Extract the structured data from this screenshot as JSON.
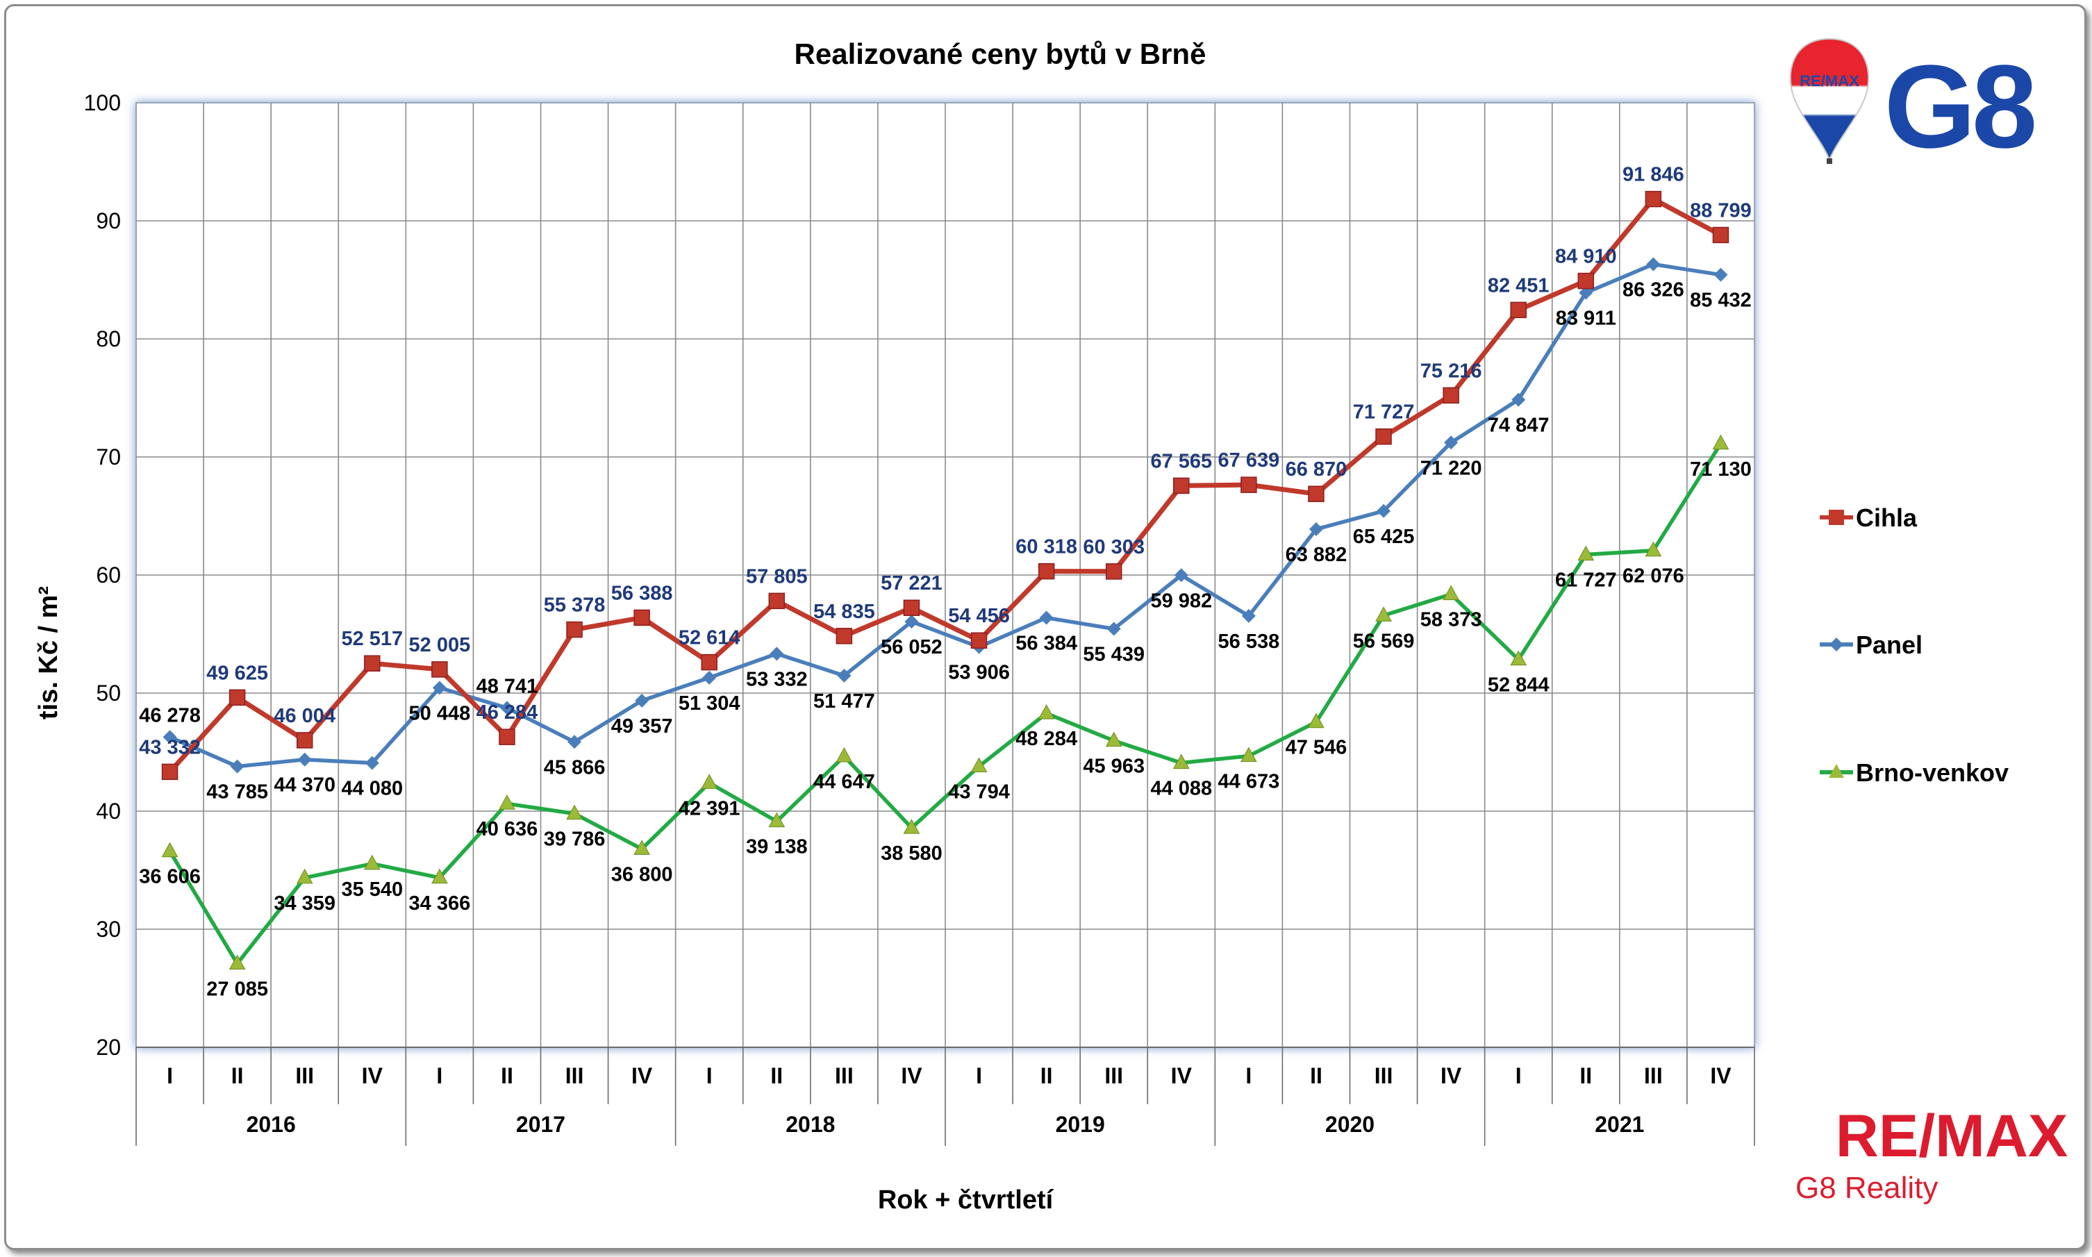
{
  "chart_data": {
    "type": "line",
    "title": "Realizované ceny bytů v Brně",
    "xlabel": "Rok + čtvrtletí",
    "ylabel": "tis. Kč / m²",
    "ylim": [
      20,
      100
    ],
    "yticks": [
      "20",
      "30",
      "40",
      "50",
      "60",
      "70",
      "80",
      "90",
      "100"
    ],
    "grid": true,
    "legend_position": "right",
    "quarters": [
      "I",
      "II",
      "III",
      "IV",
      "I",
      "II",
      "III",
      "IV",
      "I",
      "II",
      "III",
      "IV",
      "I",
      "II",
      "III",
      "IV",
      "I",
      "II",
      "III",
      "IV",
      "I",
      "II",
      "III",
      "IV"
    ],
    "years": [
      "2016",
      "2017",
      "2018",
      "2019",
      "2020",
      "2021"
    ],
    "series": [
      {
        "name": "Cihla",
        "color": "#c0392b",
        "marker": "square",
        "values": [
          43.332,
          49.625,
          46.004,
          52.517,
          52.005,
          46.284,
          55.378,
          56.388,
          52.614,
          57.805,
          54.835,
          57.221,
          54.456,
          60.318,
          60.303,
          67.565,
          67.639,
          66.87,
          71.727,
          75.216,
          82.451,
          84.91,
          91.846,
          88.799
        ],
        "labels": [
          "43 332",
          "49 625",
          "46 004",
          "52 517",
          "52 005",
          "46 284",
          "55 378",
          "56 388",
          "52 614",
          "57 805",
          "54 835",
          "57 221",
          "54 456",
          "60 318",
          "60 303",
          "67 565",
          "67 639",
          "66 870",
          "71 727",
          "75 216",
          "82 451",
          "84 910",
          "91 846",
          "88 799"
        ]
      },
      {
        "name": "Panel",
        "color": "#4a7ebb",
        "marker": "diamond",
        "values": [
          46.278,
          43.785,
          44.37,
          44.08,
          50.448,
          48.741,
          45.866,
          49.357,
          51.304,
          53.332,
          51.477,
          56.052,
          53.906,
          56.384,
          55.439,
          59.982,
          56.538,
          63.882,
          65.425,
          71.22,
          74.847,
          83.911,
          86.326,
          85.432
        ],
        "labels": [
          "46 278",
          "43 785",
          "44 370",
          "44 080",
          "50 448",
          "48 741",
          "45 866",
          "49 357",
          "51 304",
          "53 332",
          "51 477",
          "56 052",
          "53 906",
          "56 384",
          "55 439",
          "59 982",
          "56 538",
          "63 882",
          "65 425",
          "71 220",
          "74 847",
          "83 911",
          "86 326",
          "85 432"
        ]
      },
      {
        "name": "Brno-venkov",
        "color": "#22aa44",
        "marker": "triangle",
        "values": [
          36.606,
          27.085,
          34.359,
          35.54,
          34.366,
          40.636,
          39.786,
          36.8,
          42.391,
          39.138,
          44.647,
          38.58,
          43.794,
          48.284,
          45.963,
          44.088,
          44.673,
          47.546,
          56.569,
          58.373,
          52.844,
          61.727,
          62.076,
          71.13
        ],
        "labels": [
          "36 606",
          "27 085",
          "34 359",
          "35 540",
          "34 366",
          "40 636",
          "39 786",
          "36 800",
          "42 391",
          "39 138",
          "44 647",
          "38 580",
          "43 794",
          "48 284",
          "45 963",
          "44 088",
          "44 673",
          "47 546",
          "56 569",
          "58 373",
          "52 844",
          "61 727",
          "62 076",
          "71 130"
        ]
      }
    ]
  },
  "logos": {
    "balloon_text": "RE/MAX",
    "brand_mark": "G8",
    "footer_brand": "RE/MAX",
    "footer_company": "G8 Reality"
  },
  "colors": {
    "remax_red": "#dc1c2e",
    "remax_blue": "#003da5"
  }
}
